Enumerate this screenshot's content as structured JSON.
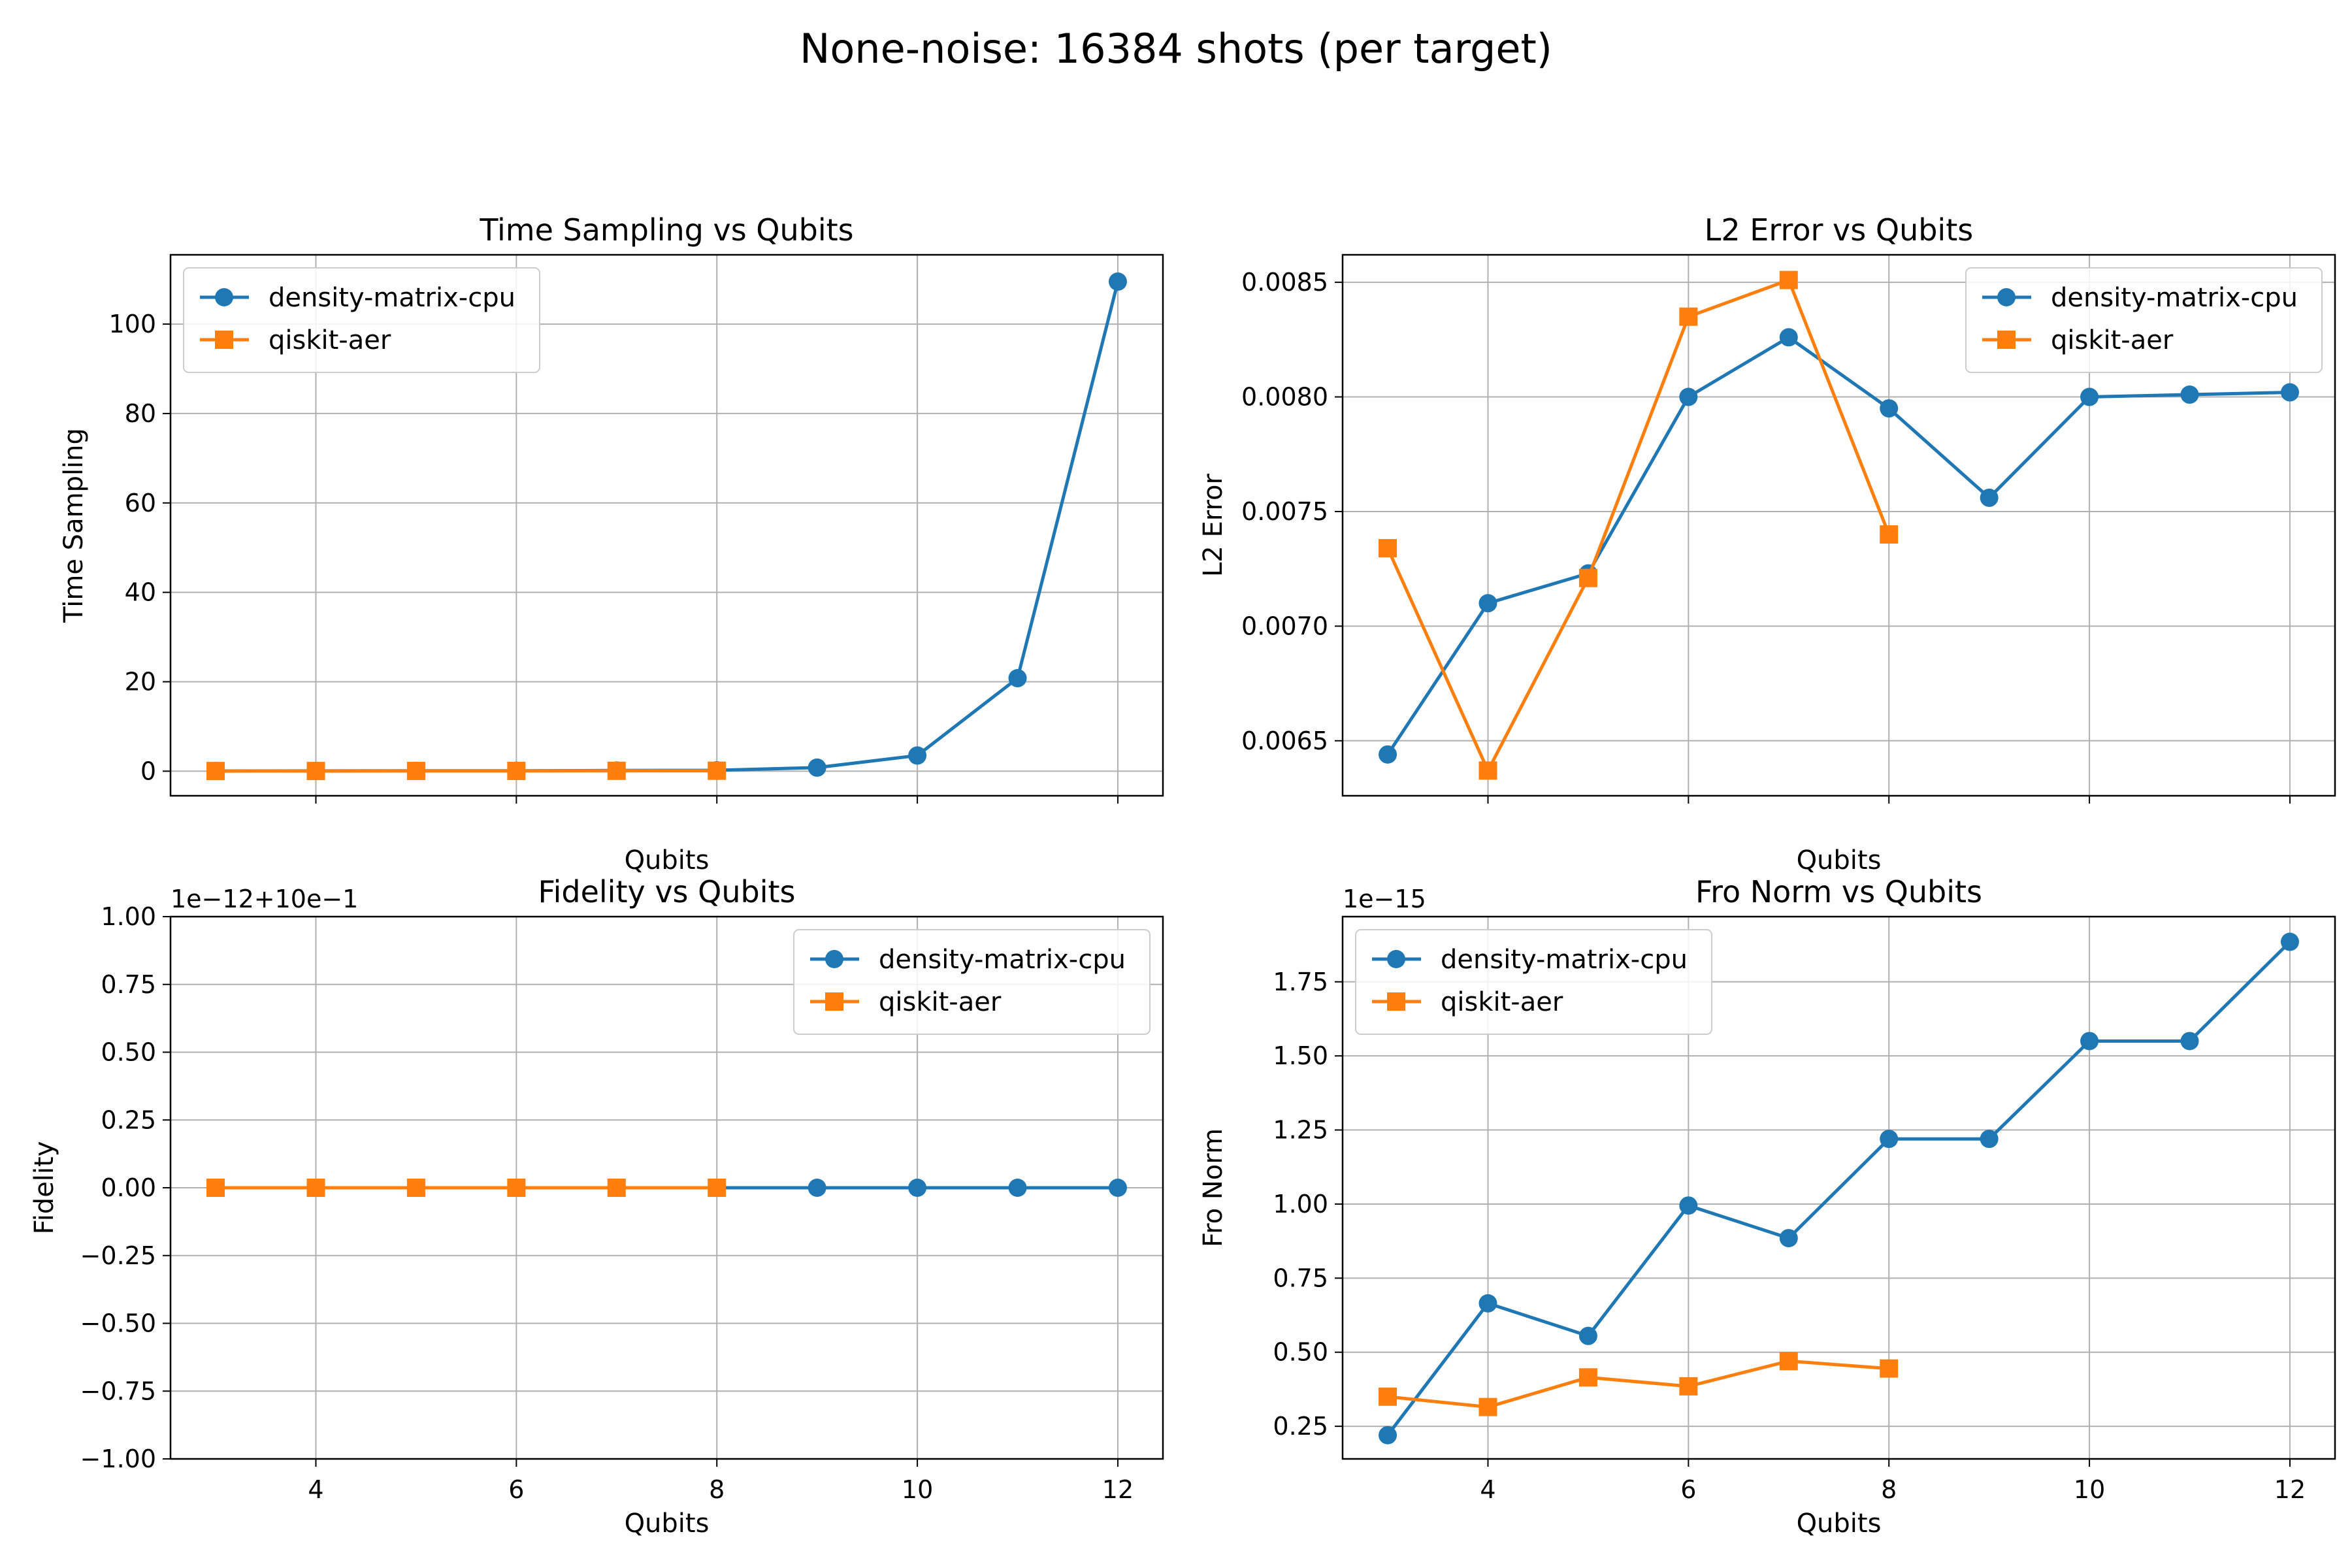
{
  "suptitle": "None-noise: 16384 shots (per target)",
  "colors": {
    "series0": "#1f77b4",
    "series1": "#ff7f0e",
    "grid": "#b0b0b0"
  },
  "chart_data": [
    {
      "type": "line",
      "title": "Time Sampling vs Qubits",
      "xlabel": "Qubits",
      "ylabel": "Time Sampling",
      "xlim": [
        2.55,
        12.45
      ],
      "ylim": [
        -5.5,
        115.5
      ],
      "xticks": [
        4,
        6,
        8,
        10,
        12
      ],
      "show_xticklabels": false,
      "yticks": [
        0,
        20,
        40,
        60,
        80,
        100
      ],
      "ytick_labels": [
        "0",
        "20",
        "40",
        "60",
        "80",
        "100"
      ],
      "offset_text": "",
      "grid": true,
      "legend": "upper left",
      "series": [
        {
          "name": "density-matrix-cpu",
          "marker": "circle",
          "x": [
            3,
            4,
            5,
            6,
            7,
            8,
            9,
            10,
            11,
            12
          ],
          "y": [
            0.05,
            0.07,
            0.08,
            0.1,
            0.15,
            0.2,
            0.8,
            3.5,
            20.8,
            109.5
          ]
        },
        {
          "name": "qiskit-aer",
          "marker": "square",
          "x": [
            3,
            4,
            5,
            6,
            7,
            8
          ],
          "y": [
            0.03,
            0.04,
            0.05,
            0.06,
            0.08,
            0.1
          ]
        }
      ]
    },
    {
      "type": "line",
      "title": "L2 Error vs Qubits",
      "xlabel": "Qubits",
      "ylabel": "L2 Error",
      "xlim": [
        2.55,
        12.45
      ],
      "ylim": [
        0.00626,
        0.00862
      ],
      "xticks": [
        4,
        6,
        8,
        10,
        12
      ],
      "show_xticklabels": false,
      "yticks": [
        0.0065,
        0.007,
        0.0075,
        0.008,
        0.0085
      ],
      "ytick_labels": [
        "0.0065",
        "0.0070",
        "0.0075",
        "0.0080",
        "0.0085"
      ],
      "offset_text": "",
      "grid": true,
      "legend": "upper right",
      "series": [
        {
          "name": "density-matrix-cpu",
          "marker": "circle",
          "x": [
            3,
            4,
            5,
            6,
            7,
            8,
            9,
            10,
            11,
            12
          ],
          "y": [
            0.00644,
            0.0071,
            0.00723,
            0.008,
            0.00826,
            0.00795,
            0.00756,
            0.008,
            0.00801,
            0.00802
          ]
        },
        {
          "name": "qiskit-aer",
          "marker": "square",
          "x": [
            3,
            4,
            5,
            6,
            7,
            8
          ],
          "y": [
            0.00734,
            0.00637,
            0.00721,
            0.00835,
            0.00851,
            0.0074
          ]
        }
      ]
    },
    {
      "type": "line",
      "title": "Fidelity vs Qubits",
      "xlabel": "Qubits",
      "ylabel": "Fidelity",
      "xlim": [
        2.55,
        12.45
      ],
      "ylim": [
        -1.0,
        1.0
      ],
      "xticks": [
        4,
        6,
        8,
        10,
        12
      ],
      "show_xticklabels": true,
      "xtick_labels": [
        "4",
        "6",
        "8",
        "10",
        "12"
      ],
      "yticks": [
        -1.0,
        -0.75,
        -0.5,
        -0.25,
        0.0,
        0.25,
        0.5,
        0.75,
        1.0
      ],
      "ytick_labels": [
        "−1.00",
        "−0.75",
        "−0.50",
        "−0.25",
        "0.00",
        "0.25",
        "0.50",
        "0.75",
        "1.00"
      ],
      "offset_text": "1e−12+10e−1",
      "grid": true,
      "legend": "upper right",
      "series": [
        {
          "name": "density-matrix-cpu",
          "marker": "circle",
          "x": [
            3,
            4,
            5,
            6,
            7,
            8,
            9,
            10,
            11,
            12
          ],
          "y": [
            0,
            0,
            0,
            0,
            0,
            0,
            0,
            0,
            0,
            0
          ]
        },
        {
          "name": "qiskit-aer",
          "marker": "square",
          "x": [
            3,
            4,
            5,
            6,
            7,
            8
          ],
          "y": [
            0,
            0,
            0,
            0,
            0,
            0
          ]
        }
      ]
    },
    {
      "type": "line",
      "title": "Fro Norm vs Qubits",
      "xlabel": "Qubits",
      "ylabel": "Fro Norm",
      "xlim": [
        2.55,
        12.45
      ],
      "ylim": [
        0.14,
        1.97
      ],
      "xticks": [
        4,
        6,
        8,
        10,
        12
      ],
      "show_xticklabels": true,
      "xtick_labels": [
        "4",
        "6",
        "8",
        "10",
        "12"
      ],
      "yticks": [
        0.25,
        0.5,
        0.75,
        1.0,
        1.25,
        1.5,
        1.75
      ],
      "ytick_labels": [
        "0.25",
        "0.50",
        "0.75",
        "1.00",
        "1.25",
        "1.50",
        "1.75"
      ],
      "offset_text": "1e−15",
      "grid": true,
      "legend": "upper left",
      "series": [
        {
          "name": "density-matrix-cpu",
          "marker": "circle",
          "x": [
            3,
            4,
            5,
            6,
            7,
            8,
            9,
            10,
            11,
            12
          ],
          "y": [
            0.22,
            0.665,
            0.555,
            0.995,
            0.885,
            1.22,
            1.22,
            1.55,
            1.55,
            1.885
          ]
        },
        {
          "name": "qiskit-aer",
          "marker": "square",
          "x": [
            3,
            4,
            5,
            6,
            7,
            8
          ],
          "y": [
            0.35,
            0.315,
            0.415,
            0.385,
            0.47,
            0.445
          ]
        }
      ]
    }
  ]
}
